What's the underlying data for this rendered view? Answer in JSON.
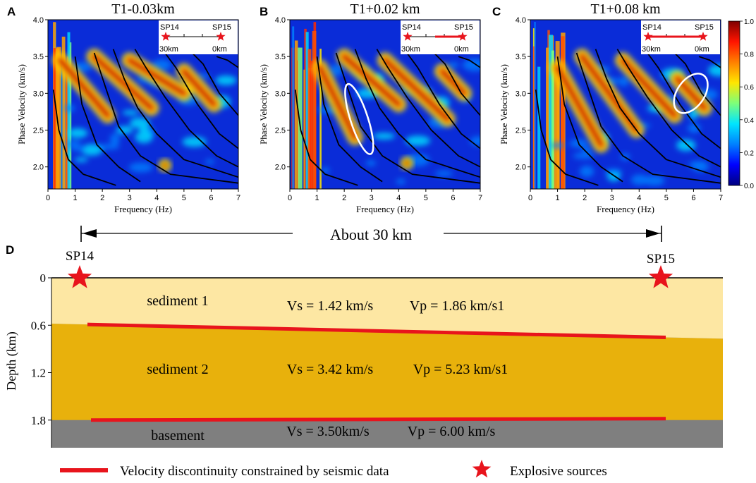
{
  "chart_data": [
    {
      "type": "heatmap",
      "panel": "A",
      "title": "T1-0.03km",
      "xlabel": "Frequency (Hz)",
      "ylabel": "Phase Velocity (km/s)",
      "xlim": [
        0,
        7
      ],
      "ylim": [
        1.7,
        4.0
      ],
      "xticks": [
        "0",
        "1",
        "2",
        "3",
        "4",
        "5",
        "6",
        "7"
      ],
      "yticks": [
        "2.0",
        "2.5",
        "3.0",
        "3.5",
        "4.0"
      ],
      "inset": {
        "left_label": "SP14",
        "right_label": "SP15",
        "left_dist": "30km",
        "right_dist": "0km",
        "segment_start": 1.0,
        "segment_end": 1.0
      },
      "ridges": [
        {
          "f0": 0.45,
          "v0": 3.45,
          "f1": 2.2,
          "v1": 2.7
        },
        {
          "f0": 1.7,
          "v0": 3.5,
          "f1": 3.8,
          "v1": 2.8
        },
        {
          "f0": 3.0,
          "v0": 3.45,
          "f1": 5.0,
          "v1": 3.0
        },
        {
          "f0": 5.0,
          "v0": 3.3,
          "f1": 6.1,
          "v1": 2.85
        }
      ],
      "curves": [
        [
          [
            0.2,
            3.05
          ],
          [
            0.4,
            2.5
          ],
          [
            0.75,
            2.1
          ],
          [
            1.3,
            1.9
          ],
          [
            2.5,
            1.75
          ]
        ],
        [
          [
            1.0,
            3.5
          ],
          [
            1.25,
            2.85
          ],
          [
            1.8,
            2.3
          ],
          [
            2.6,
            2.0
          ],
          [
            3.4,
            1.8
          ]
        ],
        [
          [
            1.7,
            3.55
          ],
          [
            2.1,
            3.1
          ],
          [
            2.6,
            2.55
          ],
          [
            3.4,
            2.15
          ],
          [
            4.5,
            1.9
          ],
          [
            7.0,
            1.78
          ]
        ],
        [
          [
            2.4,
            3.6
          ],
          [
            2.8,
            3.2
          ],
          [
            3.3,
            2.8
          ],
          [
            4.0,
            2.45
          ],
          [
            5.0,
            2.1
          ],
          [
            7.0,
            1.86
          ]
        ],
        [
          [
            3.2,
            3.6
          ],
          [
            3.6,
            3.35
          ],
          [
            4.3,
            2.95
          ],
          [
            5.2,
            2.5
          ],
          [
            6.2,
            2.15
          ],
          [
            7.0,
            2.0
          ]
        ],
        [
          [
            4.3,
            3.55
          ],
          [
            4.7,
            3.35
          ],
          [
            5.5,
            2.85
          ],
          [
            6.3,
            2.45
          ],
          [
            7.0,
            2.25
          ]
        ],
        [
          [
            5.3,
            3.55
          ],
          [
            5.7,
            3.4
          ],
          [
            6.3,
            3.0
          ],
          [
            7.0,
            2.7
          ]
        ],
        [
          [
            6.2,
            3.5
          ],
          [
            6.6,
            3.45
          ],
          [
            7.0,
            3.35
          ]
        ]
      ],
      "highlight": {
        "f": 4.3,
        "v": 2.02
      }
    },
    {
      "type": "heatmap",
      "panel": "B",
      "title": "T1+0.02 km",
      "xlabel": "Frequency (Hz)",
      "ylabel": "Phase Velocity (km/s)",
      "xlim": [
        0,
        7
      ],
      "ylim": [
        1.7,
        4.0
      ],
      "xticks": [
        "0",
        "1",
        "2",
        "3",
        "4",
        "5",
        "6",
        "7"
      ],
      "yticks": [
        "2.0",
        "2.5",
        "3.0",
        "3.5",
        "4.0"
      ],
      "inset": {
        "left_label": "SP14",
        "right_label": "SP15",
        "left_dist": "30km",
        "right_dist": "0km",
        "segment_start": 0.5,
        "segment_end": 1.0
      },
      "ridges": [
        {
          "f0": 1.1,
          "v0": 3.35,
          "f1": 2.4,
          "v1": 2.4
        },
        {
          "f0": 2.0,
          "v0": 3.5,
          "f1": 4.0,
          "v1": 2.85
        },
        {
          "f0": 3.5,
          "v0": 3.45,
          "f1": 5.8,
          "v1": 2.65
        },
        {
          "f0": 5.6,
          "v0": 3.3,
          "f1": 6.4,
          "v1": 3.0
        }
      ],
      "curves": [
        [
          [
            0.2,
            3.05
          ],
          [
            0.4,
            2.5
          ],
          [
            0.75,
            2.1
          ],
          [
            1.3,
            1.9
          ],
          [
            2.5,
            1.75
          ]
        ],
        [
          [
            1.0,
            3.5
          ],
          [
            1.25,
            2.85
          ],
          [
            1.8,
            2.3
          ],
          [
            2.6,
            2.0
          ],
          [
            3.4,
            1.8
          ]
        ],
        [
          [
            1.7,
            3.55
          ],
          [
            2.1,
            3.1
          ],
          [
            2.6,
            2.55
          ],
          [
            3.4,
            2.15
          ],
          [
            4.5,
            1.9
          ],
          [
            7.0,
            1.78
          ]
        ],
        [
          [
            2.4,
            3.6
          ],
          [
            2.8,
            3.2
          ],
          [
            3.3,
            2.8
          ],
          [
            4.0,
            2.45
          ],
          [
            5.0,
            2.1
          ],
          [
            7.0,
            1.86
          ]
        ],
        [
          [
            3.2,
            3.6
          ],
          [
            3.6,
            3.35
          ],
          [
            4.3,
            2.95
          ],
          [
            5.2,
            2.5
          ],
          [
            6.2,
            2.15
          ],
          [
            7.0,
            2.0
          ]
        ],
        [
          [
            4.3,
            3.55
          ],
          [
            4.7,
            3.35
          ],
          [
            5.5,
            2.85
          ],
          [
            6.3,
            2.45
          ],
          [
            7.0,
            2.25
          ]
        ],
        [
          [
            5.3,
            3.55
          ],
          [
            5.7,
            3.4
          ],
          [
            6.3,
            3.0
          ],
          [
            7.0,
            2.7
          ]
        ],
        [
          [
            6.2,
            3.5
          ],
          [
            6.6,
            3.45
          ],
          [
            7.0,
            3.35
          ]
        ]
      ],
      "highlight": {
        "f": 4.3,
        "v": 2.05
      },
      "ellipse": {
        "f": 2.55,
        "v": 2.65,
        "rf": 0.32,
        "rv": 0.5,
        "angle": -18
      }
    },
    {
      "type": "heatmap",
      "panel": "C",
      "title": "T1+0.08 km",
      "xlabel": "Frequency (Hz)",
      "ylabel": "Phase Velocity (km/s)",
      "xlim": [
        0,
        7
      ],
      "ylim": [
        1.7,
        4.0
      ],
      "xticks": [
        "0",
        "1",
        "2",
        "3",
        "4",
        "5",
        "6",
        "7"
      ],
      "yticks": [
        "2.0",
        "2.5",
        "3.0",
        "3.5",
        "4.0"
      ],
      "inset": {
        "left_label": "SP14",
        "right_label": "SP15",
        "left_dist": "30km",
        "right_dist": "0km",
        "segment_start": 0.0,
        "segment_end": 1.0
      },
      "ridges": [
        {
          "f0": 1.0,
          "v0": 3.35,
          "f1": 2.6,
          "v1": 2.3
        },
        {
          "f0": 1.9,
          "v0": 3.5,
          "f1": 3.9,
          "v1": 2.5
        },
        {
          "f0": 3.4,
          "v0": 3.45,
          "f1": 5.3,
          "v1": 2.7
        },
        {
          "f0": 5.4,
          "v0": 3.2,
          "f1": 6.4,
          "v1": 2.8
        }
      ],
      "curves": [
        [
          [
            0.2,
            3.05
          ],
          [
            0.4,
            2.5
          ],
          [
            0.75,
            2.1
          ],
          [
            1.3,
            1.9
          ],
          [
            2.5,
            1.75
          ]
        ],
        [
          [
            1.0,
            3.5
          ],
          [
            1.25,
            2.85
          ],
          [
            1.8,
            2.3
          ],
          [
            2.6,
            2.0
          ],
          [
            3.4,
            1.8
          ]
        ],
        [
          [
            1.7,
            3.55
          ],
          [
            2.1,
            3.1
          ],
          [
            2.6,
            2.55
          ],
          [
            3.4,
            2.15
          ],
          [
            4.5,
            1.9
          ],
          [
            7.0,
            1.78
          ]
        ],
        [
          [
            2.4,
            3.6
          ],
          [
            2.8,
            3.2
          ],
          [
            3.3,
            2.8
          ],
          [
            4.0,
            2.45
          ],
          [
            5.0,
            2.1
          ],
          [
            7.0,
            1.86
          ]
        ],
        [
          [
            3.2,
            3.6
          ],
          [
            3.6,
            3.35
          ],
          [
            4.3,
            2.95
          ],
          [
            5.2,
            2.5
          ],
          [
            6.2,
            2.15
          ],
          [
            7.0,
            2.0
          ]
        ],
        [
          [
            4.3,
            3.55
          ],
          [
            4.7,
            3.35
          ],
          [
            5.5,
            2.85
          ],
          [
            6.3,
            2.45
          ],
          [
            7.0,
            2.25
          ]
        ],
        [
          [
            5.3,
            3.55
          ],
          [
            5.7,
            3.4
          ],
          [
            6.3,
            3.0
          ],
          [
            7.0,
            2.7
          ]
        ],
        [
          [
            6.2,
            3.5
          ],
          [
            6.6,
            3.45
          ],
          [
            7.0,
            3.35
          ]
        ]
      ],
      "ellipse": {
        "f": 5.9,
        "v": 3.0,
        "rf": 0.5,
        "rv": 0.3,
        "angle": 35
      }
    }
  ],
  "colorbar": {
    "range": [
      0.0,
      1.0
    ],
    "ticks": [
      "0.0",
      "0.2",
      "0.4",
      "0.6",
      "0.8",
      "1.0"
    ],
    "colors": [
      "#00007f",
      "#0000ff",
      "#0080ff",
      "#00e5ff",
      "#7dff7a",
      "#ffe600",
      "#ff8000",
      "#ff1400",
      "#7f0000"
    ]
  },
  "panel_labels": [
    "A",
    "B",
    "C",
    "D"
  ],
  "model": {
    "title": "About 30 km",
    "ylabel": "Depth (km)",
    "yticks": [
      {
        "label": "0",
        "depth": 0.0
      },
      {
        "label": "0.6",
        "depth": 0.6
      },
      {
        "label": "1.2",
        "depth": 1.2
      },
      {
        "label": "1.8",
        "depth": 1.8
      }
    ],
    "ylim": [
      0,
      2.15
    ],
    "left_source": "SP14",
    "right_source": "SP15",
    "layers": [
      {
        "name": "sediment 1",
        "vs": "Vs = 1.42 km/s",
        "vp": "Vp = 1.86 km/s1",
        "color": "#fde7a3"
      },
      {
        "name": "sediment 2",
        "vs": "Vs = 3.42 km/s",
        "vp": "Vp = 5.23 km/s1",
        "color": "#e8b10c"
      },
      {
        "name": "basement",
        "vs": "Vs = 3.50km/s",
        "vp": "Vp = 6.00 km/s",
        "color": "#7f7f7f"
      }
    ],
    "interface1_depth": [
      0.58,
      0.77
    ],
    "interface2_depth": [
      1.8,
      1.8
    ],
    "discontinuity_color": "#e8141c",
    "source_color": "#e8141c"
  },
  "legend": {
    "line_label": "Velocity discontinuity constrained by seismic data",
    "star_label": "Explosive sources"
  }
}
